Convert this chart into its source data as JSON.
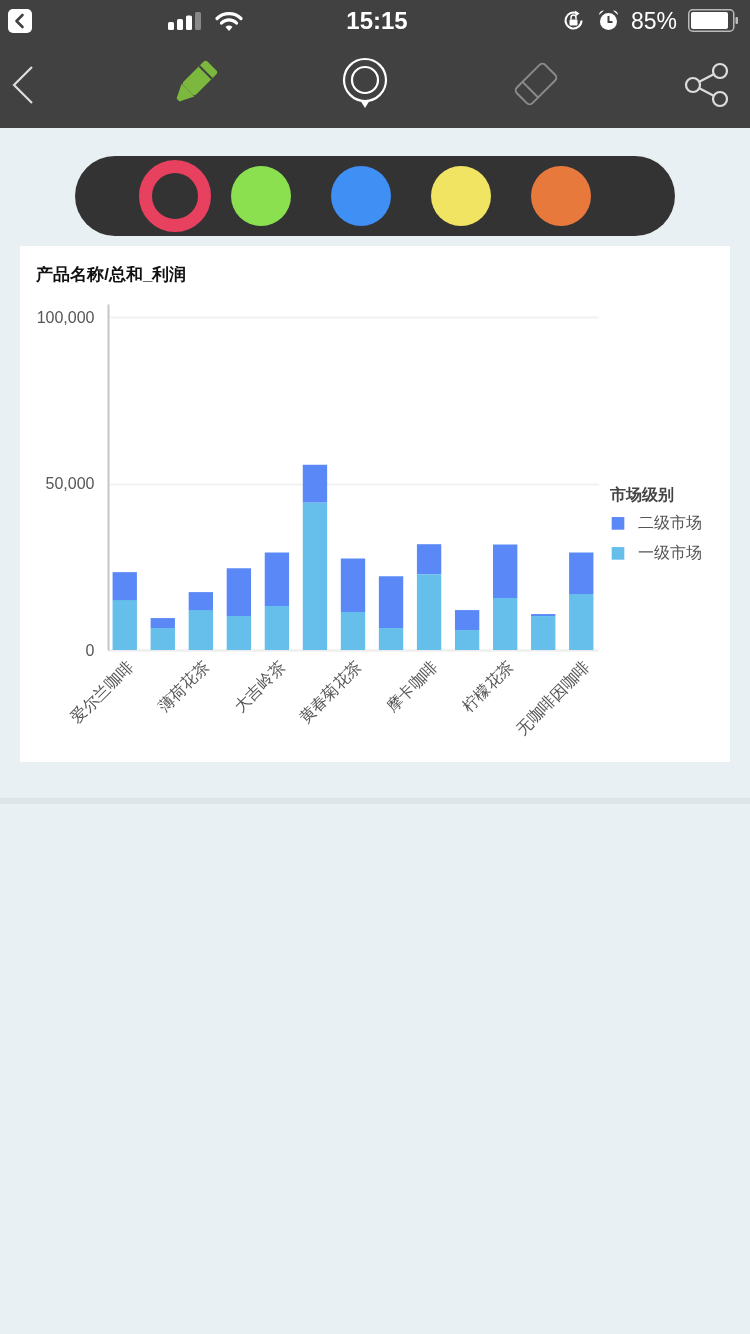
{
  "chart_data": {
    "type": "bar",
    "title": "产品名称/总和_利润",
    "categories": [
      "爱尔兰咖啡",
      null,
      "薄荷花茶",
      null,
      "大吉岭茶",
      null,
      "黄春菊花茶",
      null,
      "摩卡咖啡",
      null,
      "柠檬花茶",
      null,
      "无咖啡因咖啡"
    ],
    "series": [
      {
        "name": "一级市场",
        "color": "#66bfea",
        "values": [
          15000,
          6600,
          12000,
          10200,
          13200,
          44300,
          11400,
          6600,
          22800,
          6000,
          15600,
          10200,
          16800
        ]
      },
      {
        "name": "二级市场",
        "color": "#5b88f7",
        "values": [
          8400,
          3000,
          5400,
          14400,
          16100,
          11400,
          16100,
          15600,
          9000,
          6000,
          16100,
          600,
          12500
        ]
      }
    ],
    "stacked": true,
    "ylim": [
      0,
      104000
    ],
    "yticks": [
      {
        "value": 0,
        "label": "0"
      },
      {
        "value": 50000,
        "label": "50,000"
      },
      {
        "value": 100000,
        "label": "100,000"
      }
    ],
    "grid": "y",
    "legend": "right",
    "legend_title": "市场级别",
    "annotations": [
      "15:15",
      "85%"
    ]
  }
}
